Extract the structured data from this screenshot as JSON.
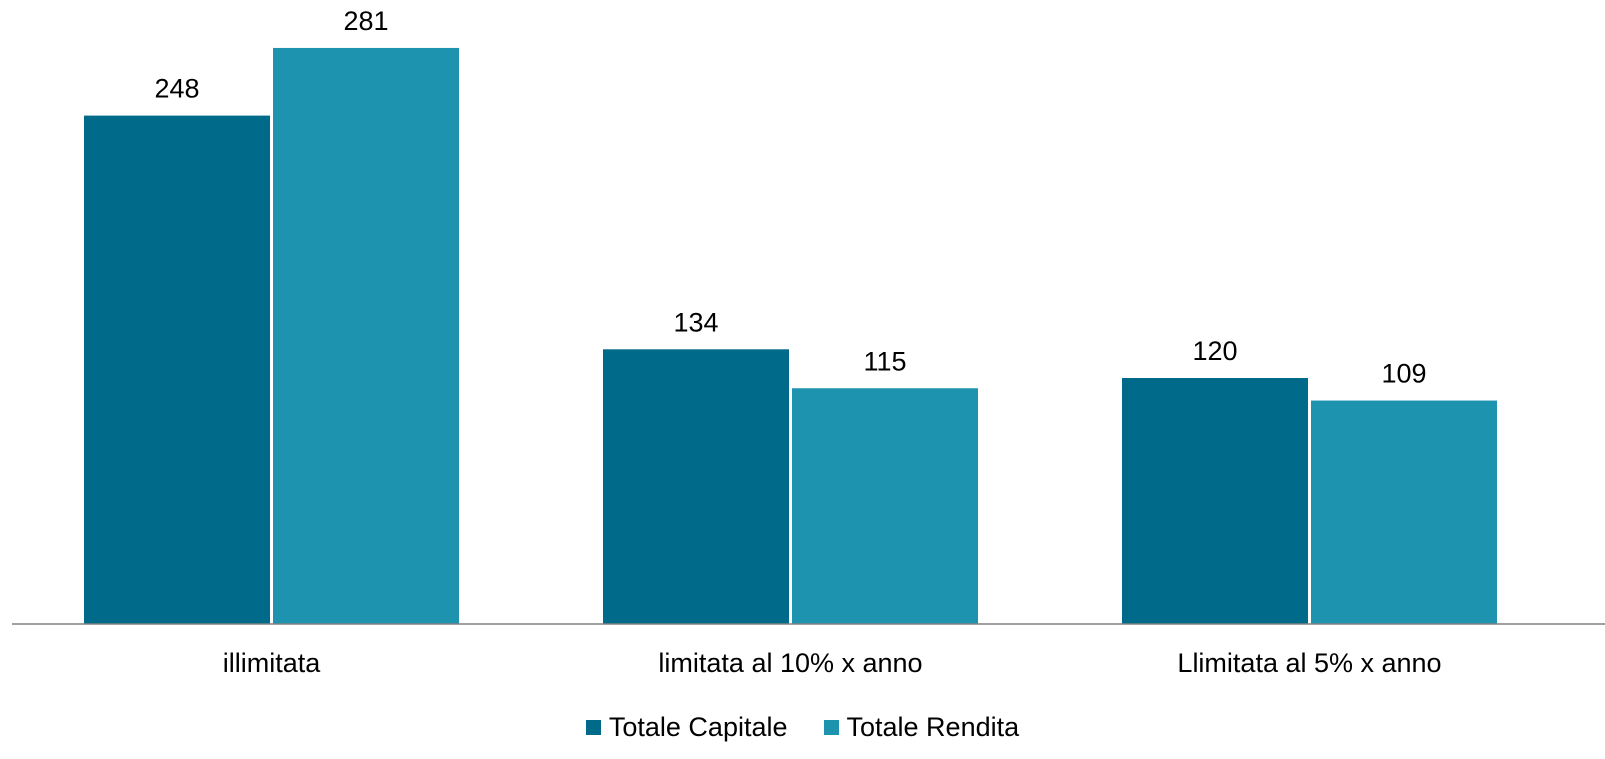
{
  "chart_data": {
    "type": "bar",
    "categories": [
      "illimitata",
      "limitata al 10% x anno",
      "Llimitata al 5% x anno"
    ],
    "series": [
      {
        "name": "Totale Capitale",
        "values": [
          248,
          134,
          120
        ],
        "color": "#006a8a"
      },
      {
        "name": "Totale Rendita",
        "values": [
          281,
          115,
          109
        ],
        "color": "#1e93b0"
      }
    ],
    "ylim": [
      0,
      300
    ],
    "grid": false,
    "legend_position": "bottom",
    "data_labels": true,
    "axis_color": "#808080"
  }
}
